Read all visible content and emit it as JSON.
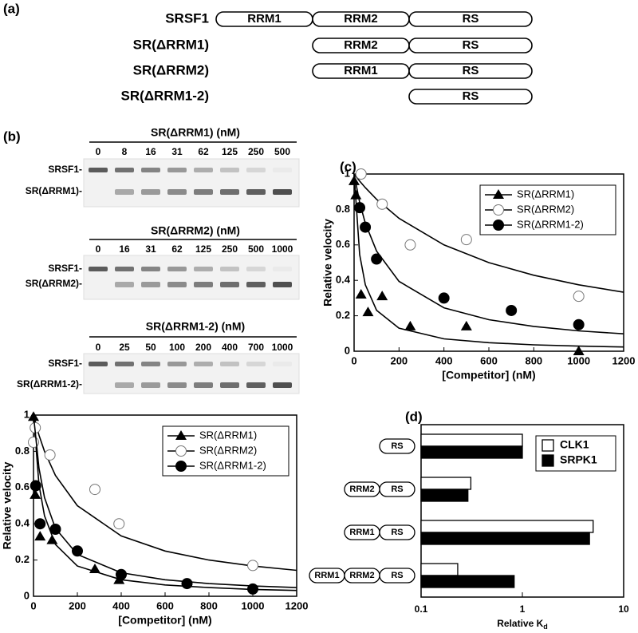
{
  "panel_labels": [
    "(a)",
    "(b)",
    "(c)",
    "(d)"
  ],
  "domain_diagram": {
    "rows": [
      {
        "label": "SRSF1",
        "domains": [
          "RRM1",
          "RRM2",
          "RS"
        ]
      },
      {
        "label": "SR(ΔRRM1)",
        "domains": [
          "RRM2",
          "RS"
        ]
      },
      {
        "label": "SR(ΔRRM2)",
        "domains": [
          "RRM1",
          "RS"
        ]
      },
      {
        "label": "SR(ΔRRM1-2)",
        "domains": [
          "RS"
        ]
      }
    ]
  },
  "gels": [
    {
      "title": "SR(ΔRRM1) (nM)",
      "lanes": [
        "0",
        "8",
        "16",
        "31",
        "62",
        "125",
        "250",
        "500"
      ],
      "bands": [
        "SRSF1-",
        "SR(ΔRRM1)-"
      ]
    },
    {
      "title": "SR(ΔRRM2) (nM)",
      "lanes": [
        "0",
        "16",
        "31",
        "62",
        "125",
        "250",
        "500",
        "1000"
      ],
      "bands": [
        "SRSF1-",
        "SR(ΔRRM2)-"
      ]
    },
    {
      "title": "SR(ΔRRM1-2) (nM)",
      "lanes": [
        "0",
        "25",
        "50",
        "100",
        "200",
        "400",
        "700",
        "1000"
      ],
      "bands": [
        "SRSF1-",
        "SR(ΔRRM1-2)-"
      ]
    }
  ],
  "chart_data": [
    {
      "type": "scatter",
      "xlabel": "[Competitor] (nM)",
      "ylabel": "Relative velocity",
      "xlim": [
        0,
        1200
      ],
      "ylim": [
        0,
        1
      ],
      "xticks": [
        0,
        200,
        400,
        600,
        800,
        1000,
        1200
      ],
      "yticks": [
        0,
        0.2,
        0.4,
        0.6,
        0.8,
        1
      ],
      "legend": "upper right",
      "series": [
        {
          "name": "SR(ΔRRM1)",
          "marker": "triangle",
          "color": "#000000",
          "x": [
            0,
            8,
            31,
            62,
            125,
            250,
            500,
            1000
          ],
          "values": [
            0.96,
            0.88,
            0.32,
            0.22,
            0.31,
            0.14,
            0.14,
            0
          ],
          "fit": {
            "x": [
              0,
              25,
              50,
              100,
              200,
              400,
              600,
              800,
              1000,
              1200
            ],
            "values": [
              1,
              0.545,
              0.375,
              0.231,
              0.13,
              0.07,
              0.048,
              0.036,
              0.029,
              0.024
            ]
          }
        },
        {
          "name": "SR(ΔRRM2)",
          "marker": "circle-open",
          "color": "#000000",
          "x": [
            31,
            125,
            250,
            500,
            1000
          ],
          "values": [
            1,
            0.83,
            0.6,
            0.63,
            0.31
          ],
          "fit": {
            "x": [
              0,
              25,
              50,
              100,
              200,
              400,
              600,
              800,
              1000,
              1200
            ],
            "values": [
              1,
              0.96,
              0.923,
              0.857,
              0.75,
              0.6,
              0.5,
              0.429,
              0.375,
              0.333
            ]
          }
        },
        {
          "name": "SR(ΔRRM1-2)",
          "marker": "circle",
          "color": "#000000",
          "x": [
            25,
            50,
            100,
            400,
            700,
            1000
          ],
          "values": [
            0.81,
            0.7,
            0.52,
            0.3,
            0.23,
            0.15
          ],
          "fit": {
            "x": [
              0,
              25,
              50,
              100,
              200,
              400,
              600,
              800,
              1000,
              1200
            ],
            "values": [
              1,
              0.839,
              0.722,
              0.565,
              0.394,
              0.245,
              0.178,
              0.14,
              0.115,
              0.098
            ]
          }
        }
      ]
    },
    {
      "type": "scatter",
      "xlabel": "[Competitor] (nM)",
      "ylabel": "Relative velocity",
      "xlim": [
        0,
        1200
      ],
      "ylim": [
        0,
        1
      ],
      "xticks": [
        0,
        200,
        400,
        600,
        800,
        1000,
        1200
      ],
      "yticks": [
        0,
        0.2,
        0.4,
        0.6,
        0.8,
        1
      ],
      "legend": "upper right",
      "series": [
        {
          "name": "SR(ΔRRM1)",
          "marker": "triangle",
          "color": "#000000",
          "x": [
            0,
            8,
            30,
            85,
            280,
            390
          ],
          "values": [
            0.99,
            0.56,
            0.33,
            0.31,
            0.15,
            0.09
          ],
          "fit": {
            "x": [
              0,
              25,
              50,
              100,
              200,
              400,
              600,
              800,
              1000,
              1200
            ],
            "values": [
              1,
              0.615,
              0.444,
              0.286,
              0.167,
              0.091,
              0.0625,
              0.048,
              0.038,
              0.032
            ]
          }
        },
        {
          "name": "SR(ΔRRM2)",
          "marker": "circle-open",
          "color": "#000000",
          "x": [
            0,
            8,
            75,
            280,
            390,
            1000
          ],
          "values": [
            0.85,
            0.93,
            0.78,
            0.59,
            0.4,
            0.17
          ],
          "fit": {
            "x": [
              0,
              25,
              50,
              100,
              200,
              400,
              600,
              800,
              1000,
              1200
            ],
            "values": [
              1,
              0.889,
              0.8,
              0.667,
              0.5,
              0.333,
              0.25,
              0.2,
              0.167,
              0.143
            ]
          }
        },
        {
          "name": "SR(ΔRRM1-2)",
          "marker": "circle",
          "color": "#000000",
          "x": [
            10,
            30,
            100,
            200,
            400,
            700,
            1000
          ],
          "values": [
            0.61,
            0.4,
            0.37,
            0.25,
            0.12,
            0.07,
            0.04
          ],
          "fit": {
            "x": [
              0,
              25,
              50,
              100,
              200,
              400,
              600,
              800,
              1000,
              1200
            ],
            "values": [
              1,
              0.706,
              0.545,
              0.375,
              0.231,
              0.13,
              0.091,
              0.07,
              0.057,
              0.048
            ]
          }
        }
      ]
    },
    {
      "type": "barh",
      "xlabel": {
        "text": "Relative K",
        "subscript": "d"
      },
      "xscale": "log",
      "xlim": [
        0.1,
        10
      ],
      "xticks": [
        0.1,
        1,
        10
      ],
      "legend": "upper right",
      "categories": [
        [
          "RS"
        ],
        [
          "RRM2",
          "RS"
        ],
        [
          "RRM1",
          "RS"
        ],
        [
          "RRM1",
          "RRM2",
          "RS"
        ]
      ],
      "series": [
        {
          "name": "CLK1",
          "color": "#ffffff",
          "values": [
            1,
            0.31,
            5.0,
            0.23
          ]
        },
        {
          "name": "SRPK1",
          "color": "#000000",
          "values": [
            1,
            0.29,
            4.6,
            0.83
          ]
        }
      ]
    }
  ]
}
